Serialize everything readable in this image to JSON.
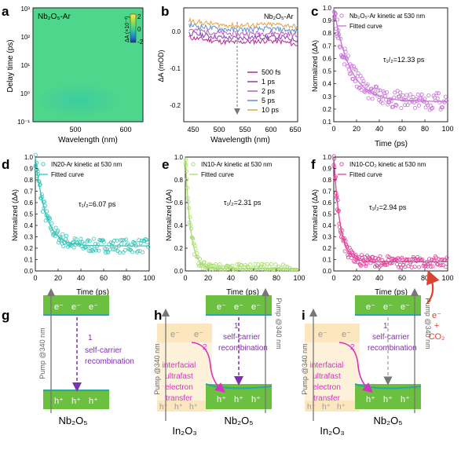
{
  "panels": {
    "a": {
      "letter": "a",
      "label": "Nb₂O₅-Ar",
      "xlabel": "Wavelength (nm)",
      "ylabel": "Delay time (ps)",
      "xticks": [
        "500",
        "600"
      ],
      "yticks": [
        "10³",
        "10²",
        "10¹",
        "10⁰",
        "10⁻¹"
      ],
      "colorbar_title": "ΔA (×10⁻³)",
      "colorbar_ticks": [
        "2",
        "0",
        "-2"
      ]
    },
    "b": {
      "letter": "b",
      "label": "Nb₂O₅-Ar",
      "xlabel": "Wavelength (nm)",
      "ylabel": "ΔA (mOD)",
      "xticks": [
        "450",
        "500",
        "550",
        "600",
        "650"
      ],
      "yticks": [
        "0.0",
        "-0.1",
        "-0.2"
      ],
      "legend": [
        "500 fs",
        "1 ps",
        "2 ps",
        "5 ps",
        "10 ps"
      ]
    },
    "c": {
      "letter": "c",
      "legend_points": "Nb₂O₅-Ar kinetic at 530 nm",
      "legend_line": "Fitted curve",
      "tau": "τ₁/₂=12.33 ps",
      "xlabel": "Time (ps)",
      "ylabel": "Normalized (ΔA)",
      "xticks": [
        "0",
        "20",
        "40",
        "60",
        "80",
        "100"
      ],
      "yticks": [
        "1.0",
        "0.9",
        "0.8",
        "0.7",
        "0.6",
        "0.5",
        "0.4",
        "0.3",
        "0.2",
        "0.1"
      ]
    },
    "d": {
      "letter": "d",
      "legend_points": "IN20-Ar kinetic at 530 nm",
      "legend_line": "Fitted curve",
      "tau": "τ₁/₂=6.07 ps",
      "xlabel": "Time (ps)",
      "ylabel": "Normalized (ΔA)",
      "xticks": [
        "0",
        "20",
        "40",
        "60",
        "80",
        "100"
      ],
      "yticks": [
        "1.0",
        "0.9",
        "0.8",
        "0.7",
        "0.6",
        "0.5",
        "0.4",
        "0.3",
        "0.2",
        "0.1",
        "0.0"
      ]
    },
    "e": {
      "letter": "e",
      "legend_points": "IN10-Ar kinetic at 530 nm",
      "legend_line": "Fitted curve",
      "tau": "τ₁/₂=2.31 ps",
      "xlabel": "Time (ps)",
      "ylabel": "Normalized (ΔA)",
      "xticks": [
        "0",
        "20",
        "40",
        "60",
        "80",
        "100"
      ],
      "yticks": [
        "1.0",
        "0.8",
        "0.6",
        "0.4",
        "0.2",
        "0.0"
      ]
    },
    "f": {
      "letter": "f",
      "legend_points": "IN10-CO₂ kinetic at 530 nm",
      "legend_line": "Fitted curve",
      "tau": "τ₁/₂=2.94 ps",
      "xlabel": "Time (ps)",
      "ylabel": "Normalized (ΔA)",
      "xticks": [
        "0",
        "20",
        "40",
        "60",
        "80",
        "100"
      ],
      "yticks": [
        "1.0",
        "0.9",
        "0.8",
        "0.7",
        "0.6",
        "0.5",
        "0.4",
        "0.3",
        "0.2",
        "0.1",
        "0.0"
      ]
    },
    "g": {
      "letter": "g",
      "pump": "Pump @340 nm",
      "step": "1",
      "step_text": [
        "self-carrier",
        "recombination"
      ],
      "electron": "e⁻",
      "hole": "h⁺",
      "material": "Nb₂O₅"
    },
    "h": {
      "letter": "h",
      "pump_left": "Pump @340 nm",
      "pump_right": "Pump @340 nm",
      "step1": "1",
      "step1_text": [
        "self-carrier",
        "recombination"
      ],
      "step2": "2",
      "step2_text": [
        "interfacial",
        "ultrafast",
        "electron",
        "transfer"
      ],
      "material_left": "In₂O₃",
      "material_right": "Nb₂O₅",
      "electron": "e⁻",
      "hole": "h⁺"
    },
    "i": {
      "letter": "i",
      "pump_left": "Pump @340 nm",
      "pump_right": "Pump @340 nm",
      "step1": "1",
      "step1_text": [
        "self-carrier",
        "recombination"
      ],
      "step2": "2",
      "step2_text": [
        "interfacial",
        "ultrafast",
        "electron",
        "transfer"
      ],
      "material_left": "In₂O₃",
      "material_right": "Nb₂O₅",
      "electron": "e⁻",
      "hole": "h⁺",
      "co2_reaction": [
        "e⁻",
        "+",
        "CO₂"
      ]
    }
  },
  "colors": {
    "heatmap_bg": "#4ed68c",
    "heatmap_spot": "#35c9a8",
    "band_green": "#6cc040",
    "band_light": "#fbe6bd",
    "band_edge": "#2aa6a6",
    "magenta": "#d633c2",
    "violet": "#7f2fb3",
    "c_points": "#c86fd8",
    "d_points": "#38c6b8",
    "e_points": "#a6dd6a",
    "f_points": "#e0409a",
    "arrow_red": "#d94432"
  },
  "chart_data": [
    {
      "type": "heatmap",
      "title": "Nb₂O₅-Ar",
      "xlabel": "Wavelength (nm)",
      "ylabel": "Delay time (ps)",
      "xlim": [
        430,
        650
      ],
      "ylim": [
        0.1,
        1000
      ],
      "y_scale": "log",
      "colorbar_range": [
        -2,
        2
      ]
    },
    {
      "type": "line",
      "title": "Nb₂O₅-Ar",
      "xlabel": "Wavelength (nm)",
      "ylabel": "ΔA (mOD)",
      "xlim": [
        430,
        650
      ],
      "ylim": [
        -0.25,
        0.02
      ],
      "x": [
        440,
        470,
        500,
        530,
        560,
        590,
        620,
        650
      ],
      "series": [
        {
          "name": "500 fs",
          "color": "#b42a8c",
          "values": [
            -0.05,
            -0.055,
            -0.06,
            -0.062,
            -0.06,
            -0.058,
            -0.06,
            -0.068
          ]
        },
        {
          "name": "1 ps",
          "color": "#8b3fb6",
          "values": [
            -0.04,
            -0.045,
            -0.05,
            -0.052,
            -0.05,
            -0.049,
            -0.05,
            -0.056
          ]
        },
        {
          "name": "2 ps",
          "color": "#c05ac6",
          "values": [
            -0.03,
            -0.036,
            -0.04,
            -0.042,
            -0.041,
            -0.04,
            -0.04,
            -0.046
          ]
        },
        {
          "name": "5 ps",
          "color": "#5f8fd6",
          "values": [
            -0.02,
            -0.026,
            -0.03,
            -0.032,
            -0.031,
            -0.03,
            -0.031,
            -0.036
          ]
        },
        {
          "name": "10 ps",
          "color": "#e8a23c",
          "values": [
            -0.01,
            -0.016,
            -0.02,
            -0.022,
            -0.021,
            -0.02,
            -0.02,
            -0.025
          ]
        }
      ],
      "annotation": "dashed arrow at 530 nm"
    },
    {
      "type": "scatter",
      "title": "Nb₂O₅-Ar kinetic at 530 nm",
      "xlabel": "Time (ps)",
      "ylabel": "Normalized (ΔA)",
      "xlim": [
        0,
        100
      ],
      "ylim": [
        0.1,
        1.0
      ],
      "fit": {
        "a": 0.74,
        "tau": 14,
        "c": 0.26
      },
      "scatter_sd": 0.07,
      "n_points": 140,
      "tau_half": 12.33
    },
    {
      "type": "scatter",
      "title": "IN20-Ar kinetic at 530 nm",
      "xlabel": "Time (ps)",
      "ylabel": "Normalized (ΔA)",
      "xlim": [
        0,
        100
      ],
      "ylim": [
        0.0,
        1.0
      ],
      "fit": {
        "a": 0.78,
        "tau": 9,
        "c": 0.22
      },
      "scatter_sd": 0.06,
      "n_points": 150,
      "tau_half": 6.07
    },
    {
      "type": "scatter",
      "title": "IN10-Ar kinetic at 530 nm",
      "xlabel": "Time (ps)",
      "ylabel": "Normalized (ΔA)",
      "xlim": [
        0,
        100
      ],
      "ylim": [
        0.0,
        1.0
      ],
      "fit": {
        "a": 0.98,
        "tau": 4.5,
        "c": 0.02
      },
      "scatter_sd": 0.04,
      "n_points": 130,
      "tau_half": 2.31
    },
    {
      "type": "scatter",
      "title": "IN10-CO₂ kinetic at 530 nm",
      "xlabel": "Time (ps)",
      "ylabel": "Normalized (ΔA)",
      "xlim": [
        0,
        100
      ],
      "ylim": [
        0.0,
        1.0
      ],
      "fit": {
        "a": 0.92,
        "tau": 5.5,
        "c": 0.08
      },
      "scatter_sd": 0.05,
      "n_points": 160,
      "tau_half": 2.94
    }
  ]
}
